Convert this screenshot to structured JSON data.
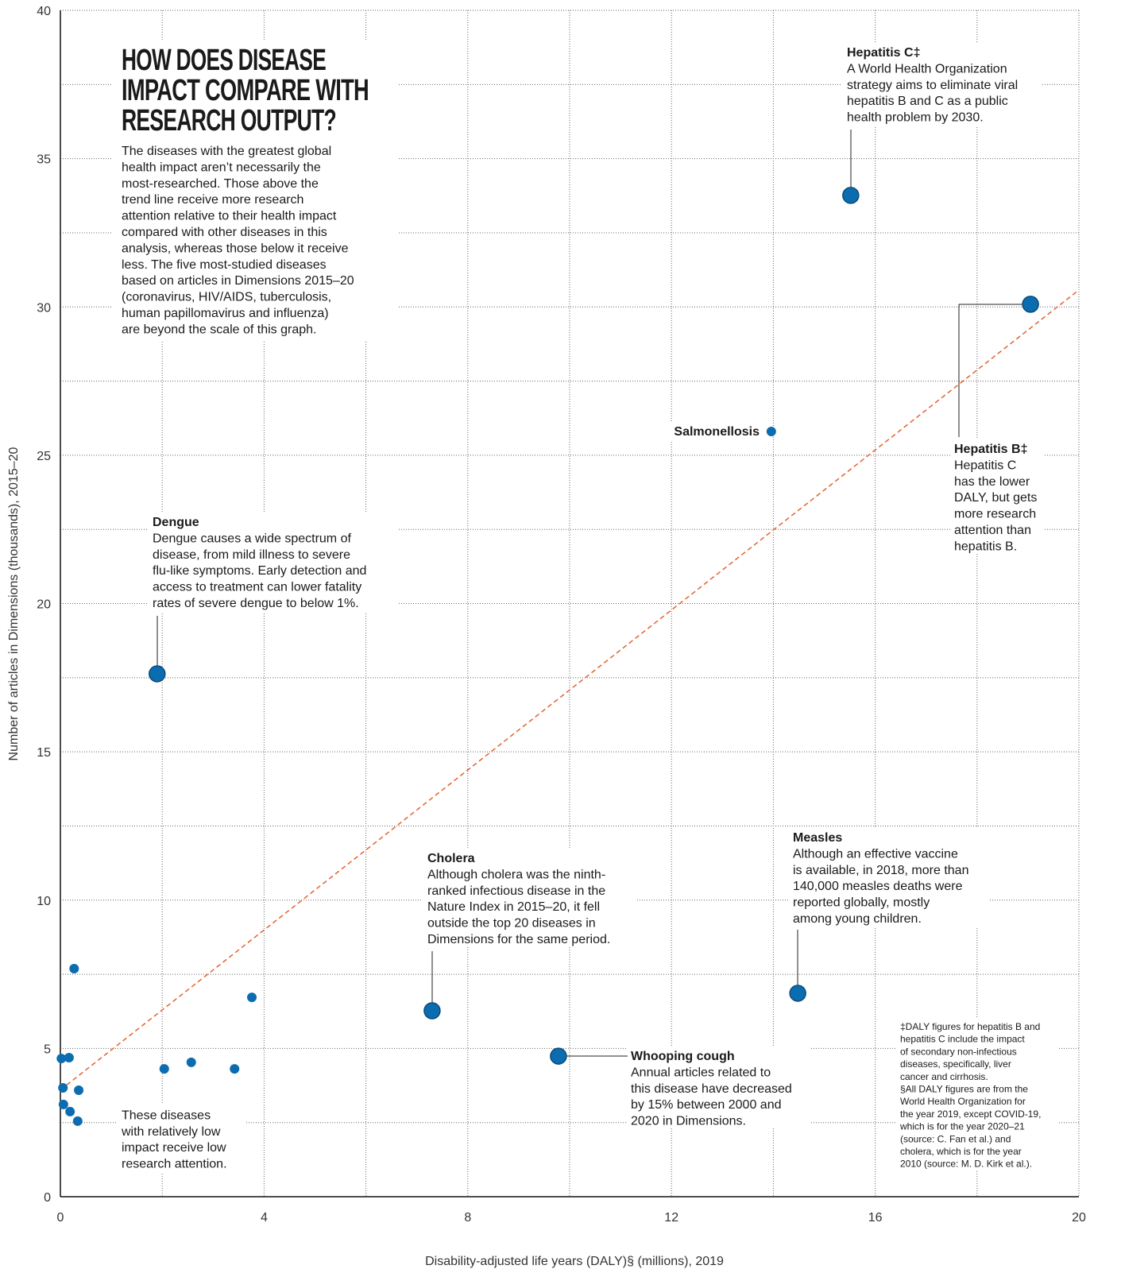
{
  "chart_data": {
    "type": "scatter",
    "title": [
      "HOW DOES DISEASE",
      "IMPACT COMPARE WITH",
      "RESEARCH OUTPUT?"
    ],
    "intro": [
      "The diseases with the greatest global",
      "health impact aren’t necessarily the",
      "most-researched. Those above the",
      "trend line receive more research",
      "attention relative to their health impact",
      "compared with other diseases in this",
      "analysis, whereas those below it receive",
      "less. The five most-studied diseases",
      "based on articles in Dimensions 2015–20",
      "(coronavirus, HIV/AIDS, tuberculosis,",
      "human papillomavirus and influenza)",
      "are beyond the scale of this graph."
    ],
    "xlabel": "Disability-adjusted life years (DALY)§ (millions), 2019",
    "ylabel": "Number of articles in Dimensions (thousands), 2015–20",
    "x": [
      15.52,
      19.05,
      13.96,
      1.9,
      7.3,
      14.48,
      9.78,
      0.27,
      3.76,
      0.02,
      0.17,
      2.57,
      2.04,
      3.42,
      0.05,
      0.36,
      0.06,
      0.19,
      0.34
    ],
    "y": [
      33.76,
      30.09,
      25.8,
      17.63,
      6.27,
      6.86,
      4.74,
      7.69,
      6.72,
      4.66,
      4.69,
      4.53,
      4.31,
      4.31,
      3.67,
      3.59,
      3.11,
      2.87,
      2.55
    ],
    "sizes": [
      10,
      10,
      6,
      10,
      10,
      10,
      10,
      6,
      6,
      6,
      6,
      6,
      6,
      6,
      6,
      6,
      6,
      6,
      6
    ],
    "color": "#0b6db0",
    "trend_line": {
      "x": [
        0,
        20
      ],
      "y": [
        3.6,
        30.57
      ],
      "color": "#e4622e"
    },
    "xlim": [
      0,
      20
    ],
    "ylim": [
      0,
      40
    ],
    "xticks": [
      0,
      4,
      8,
      12,
      16,
      20
    ],
    "yticks": [
      0,
      5,
      10,
      15,
      20,
      25,
      30,
      35,
      40
    ],
    "xgrid": [
      2,
      4,
      6,
      8,
      10,
      12,
      14,
      16,
      18,
      20
    ],
    "ygrid": [
      2.5,
      5,
      7.5,
      10,
      12.5,
      15,
      17.5,
      20,
      22.5,
      25,
      27.5,
      30,
      32.5,
      35,
      37.5,
      40
    ],
    "annotations": [
      {
        "title": "Hepatitis C‡",
        "lines": [
          "A World Health Organization",
          "strategy aims to eliminate viral",
          "hepatitis B and C as a public",
          "health problem by 2030."
        ]
      },
      {
        "title": "Hepatitis B‡",
        "lines": [
          "Hepatitis C",
          "has the lower",
          "DALY, but gets",
          "more research",
          "attention than",
          "hepatitis B."
        ]
      },
      {
        "title": "Salmonellosis",
        "lines": []
      },
      {
        "title": "Dengue",
        "lines": [
          "Dengue causes a wide spectrum of",
          "disease, from mild illness to severe",
          "flu-like symptoms. Early detection and",
          "access to treatment can lower fatality",
          "rates of severe dengue to below 1%."
        ]
      },
      {
        "title": "Cholera",
        "lines": [
          "Although cholera was the ninth-",
          "ranked infectious disease in the",
          "Nature Index in 2015–20, it fell",
          "outside the top 20 diseases in",
          "Dimensions for the same period."
        ]
      },
      {
        "title": "Measles",
        "lines": [
          "Although an effective vaccine",
          "is available, in 2018, more than",
          "140,000 measles deaths were",
          "reported globally, mostly",
          "among young children."
        ]
      },
      {
        "title": "Whooping cough",
        "lines": [
          "Annual articles related to",
          "this disease have decreased",
          "by 15% between 2000 and",
          "2020 in Dimensions."
        ]
      },
      {
        "title": null,
        "lines": [
          "These diseases",
          "with relatively low",
          "impact receive low",
          "research attention."
        ]
      }
    ],
    "footnote": [
      "‡DALY figures for hepatitis B and",
      "hepatitis C include the impact",
      "of secondary non-infectious",
      "diseases, specifically, liver",
      "cancer and cirrhosis.",
      "§All DALY figures are from the",
      "World Health Organization for",
      "the year 2019, except COVID-19,",
      "which is for the year 2020–21",
      "(source: C. Fan et al.) and",
      "cholera, which is for the year",
      "2010 (source: M. D. Kirk et al.)."
    ]
  }
}
